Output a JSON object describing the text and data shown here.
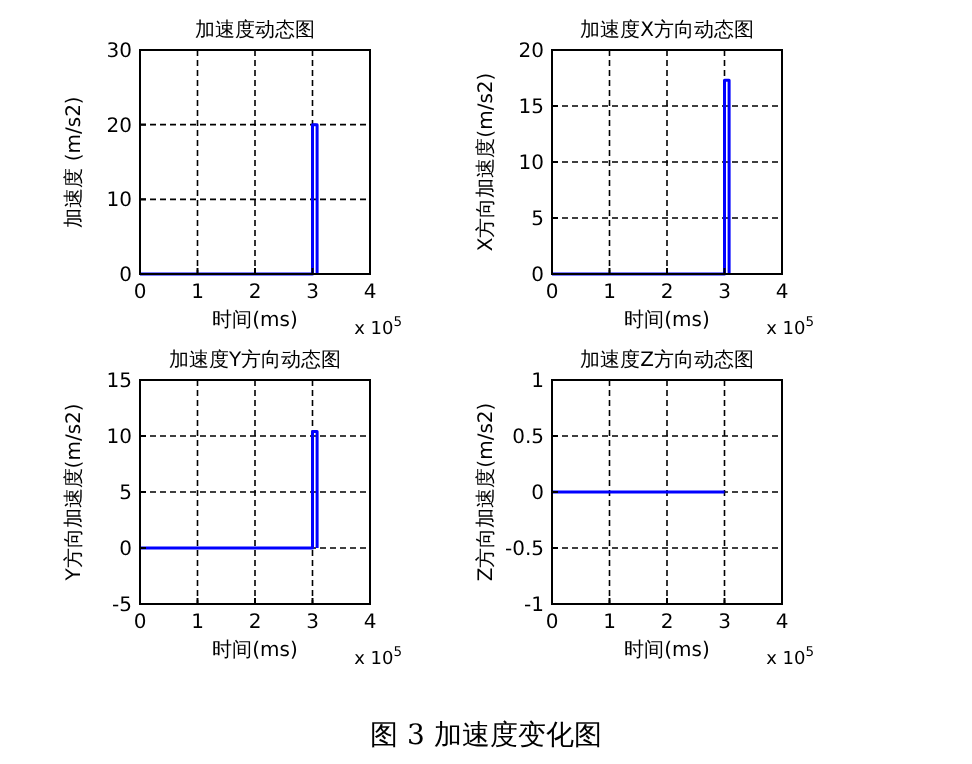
{
  "chart_data": [
    {
      "type": "line",
      "title": "加速度动态图",
      "xlabel": "时间(ms)",
      "ylabel": "加速度 (m/s2)",
      "xlim": [
        0,
        4
      ],
      "xticks": [
        0,
        1,
        2,
        3,
        4
      ],
      "ylim": [
        0,
        30
      ],
      "yticks": [
        0,
        10,
        20,
        30
      ],
      "grid": true,
      "annotations": [
        "x 10$^{5}$"
      ],
      "series": [
        {
          "color": "#0000ff",
          "x": [
            0,
            3,
            3,
            3.08,
            3.08
          ],
          "values": [
            0,
            0,
            20,
            20,
            0
          ]
        }
      ]
    },
    {
      "type": "line",
      "title": "加速度X方向动态图",
      "xlabel": "时间(ms)",
      "ylabel": "X方向加速度(m/s2)",
      "xlim": [
        0,
        4
      ],
      "xticks": [
        0,
        1,
        2,
        3,
        4
      ],
      "ylim": [
        0,
        20
      ],
      "yticks": [
        0,
        5,
        10,
        15,
        20
      ],
      "grid": true,
      "annotations": [
        "x 10$^{5}$"
      ],
      "series": [
        {
          "color": "#0000ff",
          "x": [
            0,
            3,
            3,
            3.08,
            3.08
          ],
          "values": [
            0,
            0,
            17.3,
            17.3,
            0
          ]
        }
      ]
    },
    {
      "type": "line",
      "title": "加速度Y方向动态图",
      "xlabel": "时间(ms)",
      "ylabel": "Y方向加速度(m/s2)",
      "xlim": [
        0,
        4
      ],
      "xticks": [
        0,
        1,
        2,
        3,
        4
      ],
      "ylim": [
        -5,
        15
      ],
      "yticks": [
        -5,
        0,
        5,
        10,
        15
      ],
      "grid": true,
      "annotations": [
        "x 10$^{5}$"
      ],
      "series": [
        {
          "color": "#0000ff",
          "x": [
            0,
            3,
            3,
            3.08,
            3.08
          ],
          "values": [
            0,
            0,
            10.4,
            10.4,
            0
          ]
        }
      ]
    },
    {
      "type": "line",
      "title": "加速度Z方向动态图",
      "xlabel": "时间(ms)",
      "ylabel": "Z方向加速度(m/s2)",
      "xlim": [
        0,
        4
      ],
      "xticks": [
        0,
        1,
        2,
        3,
        4
      ],
      "ylim": [
        -1,
        1
      ],
      "yticks": [
        -1,
        -0.5,
        0,
        0.5,
        1
      ],
      "grid": true,
      "annotations": [
        "x 10$^{5}$",
        "图 3  加速度变化图"
      ],
      "series": [
        {
          "color": "#0000ff",
          "x": [
            0,
            3
          ],
          "values": [
            0,
            0
          ]
        }
      ]
    }
  ]
}
